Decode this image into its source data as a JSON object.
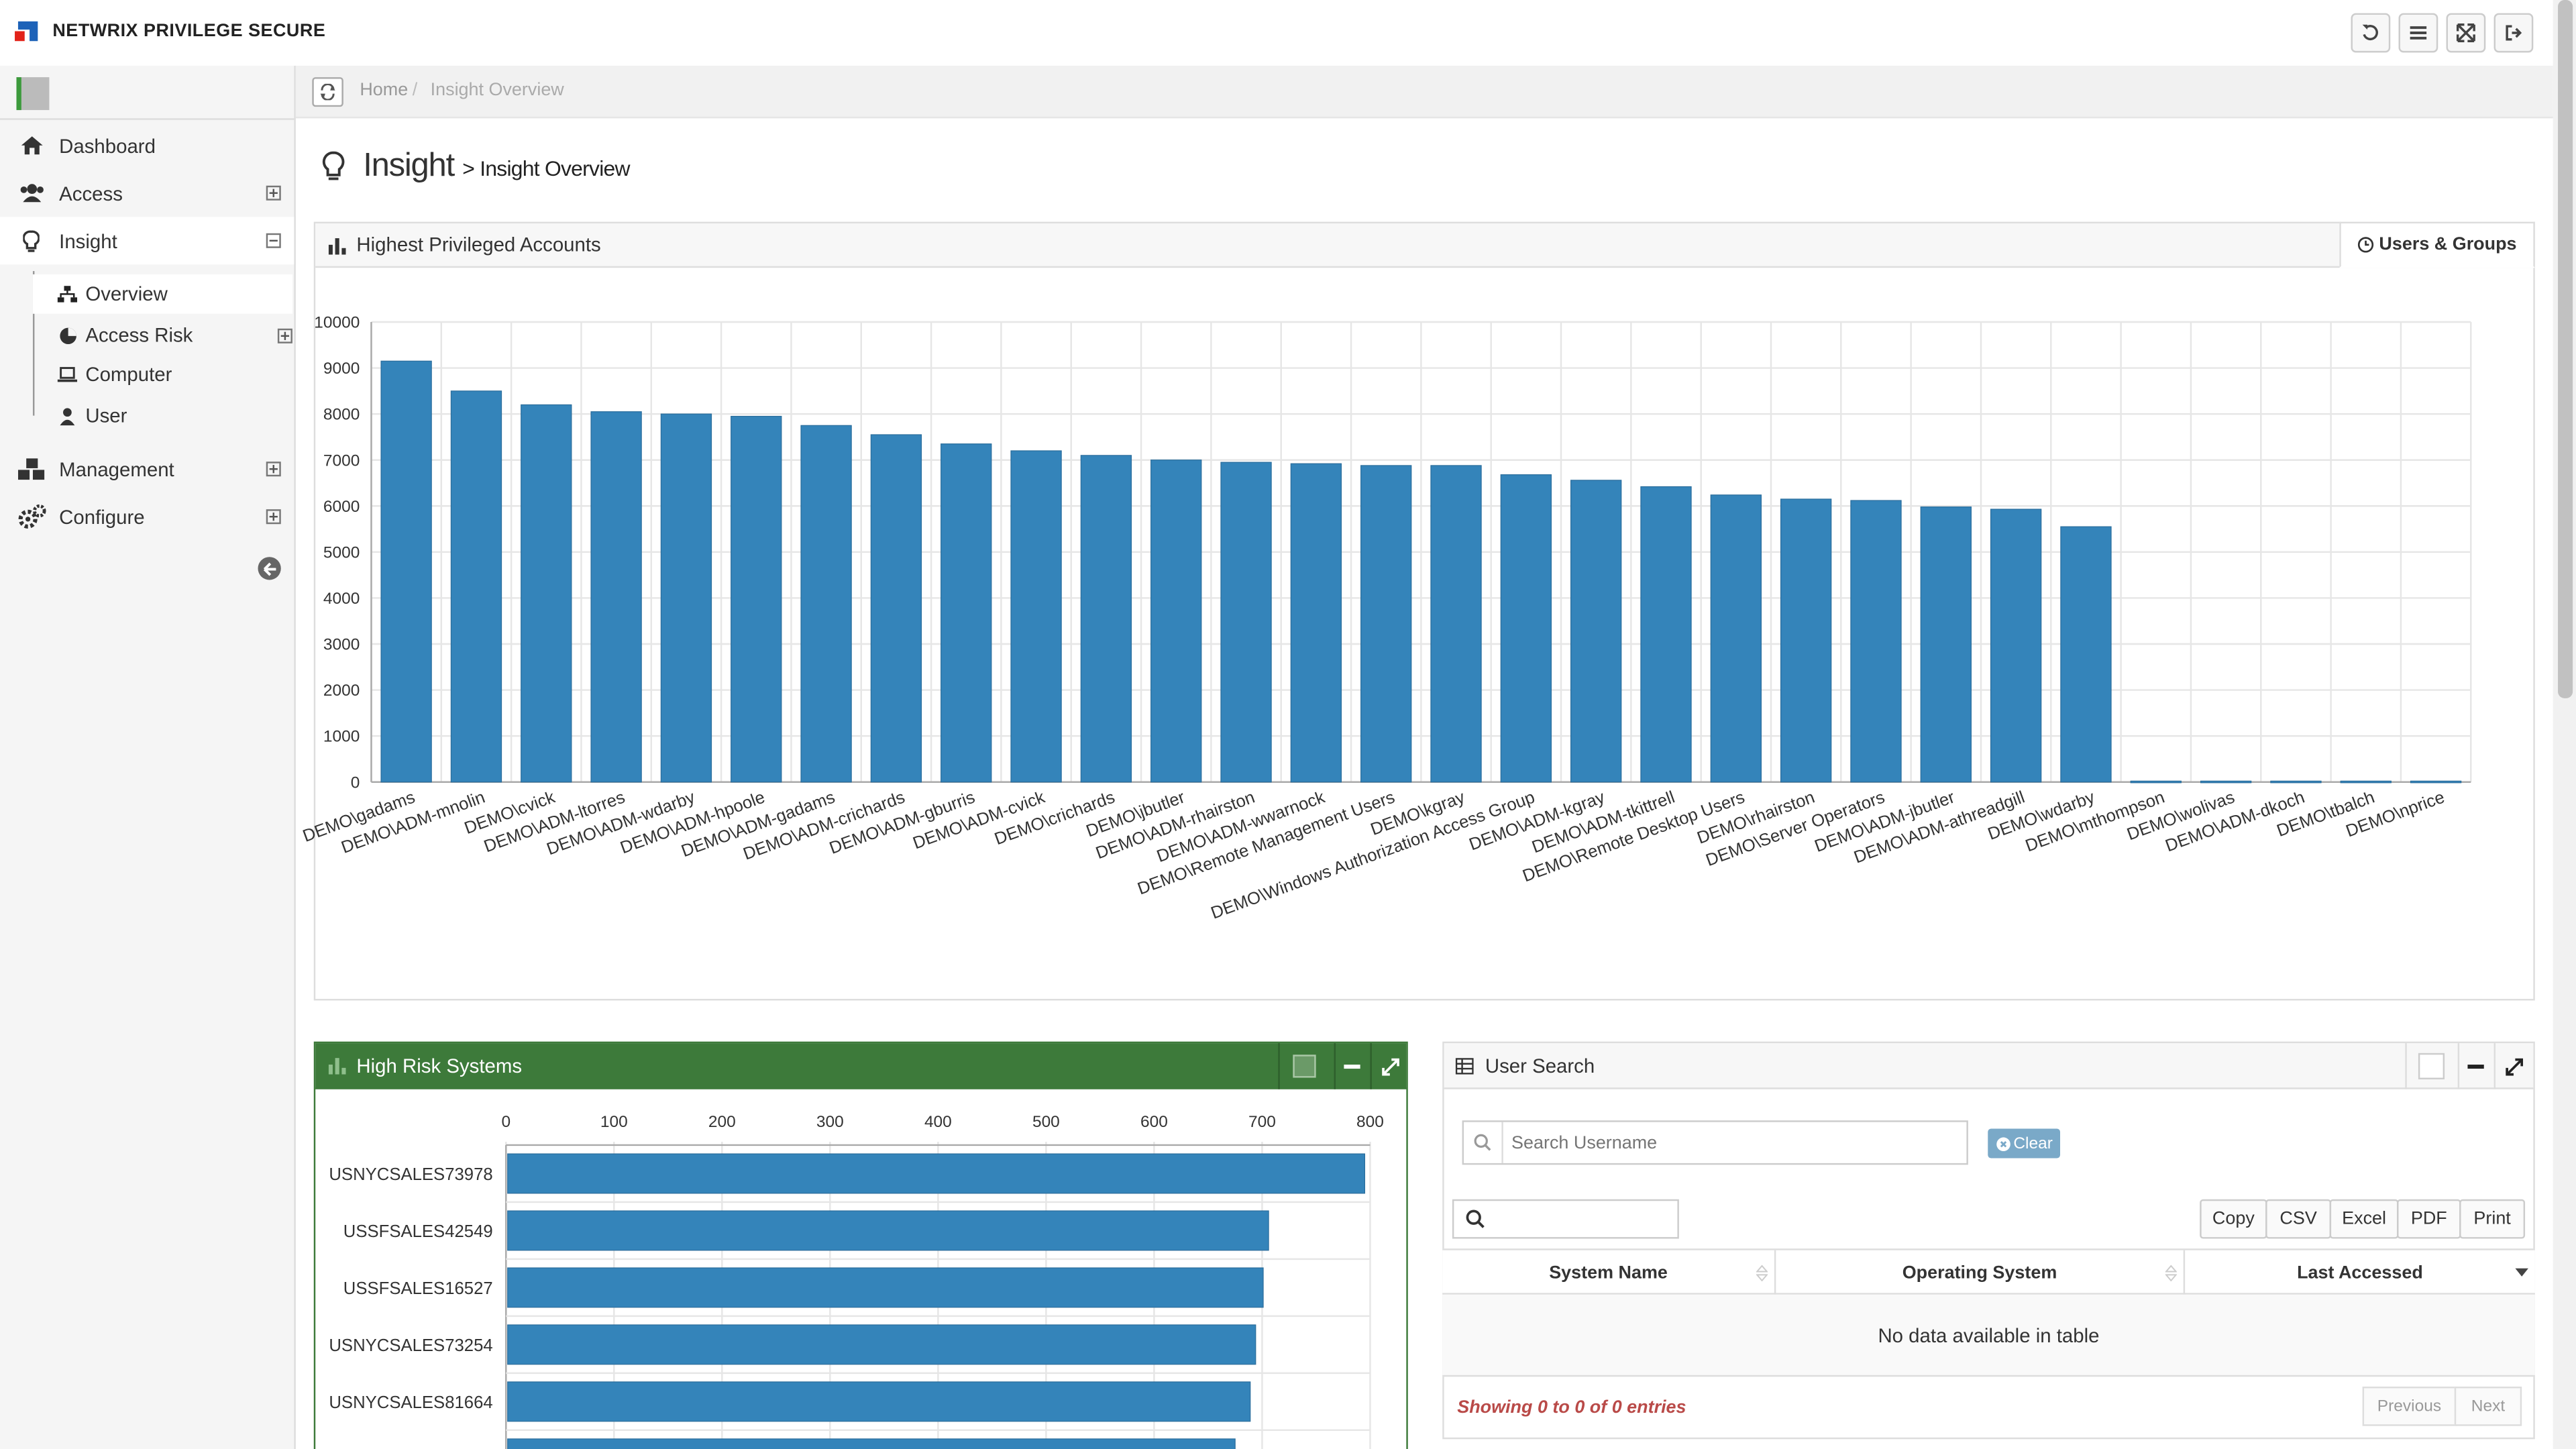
{
  "app": {
    "title": "NETWRIX PRIVILEGE SECURE"
  },
  "colors": {
    "accent": "#337ab7",
    "bar": "#3484ba",
    "panel_green": "#3d7a3a",
    "danger": "#b94a48"
  },
  "sidebar": {
    "items": [
      {
        "label": "Dashboard",
        "icon": "home-icon"
      },
      {
        "label": "Access",
        "icon": "users-icon"
      },
      {
        "label": "Insight",
        "icon": "lightbulb-icon"
      },
      {
        "label": "Management",
        "icon": "cubes-icon"
      },
      {
        "label": "Configure",
        "icon": "cogs-icon"
      }
    ],
    "insight_sub": [
      {
        "label": "Overview",
        "icon": "sitemap-icon"
      },
      {
        "label": "Access Risk",
        "icon": "pie-chart-icon"
      },
      {
        "label": "Computer",
        "icon": "laptop-icon"
      },
      {
        "label": "User",
        "icon": "user-icon"
      }
    ]
  },
  "breadcrumb": {
    "home": "Home",
    "current": "Insight Overview"
  },
  "page": {
    "title": "Insight",
    "subtitle": "> Insight Overview"
  },
  "priv_panel": {
    "title": "Highest Privileged Accounts",
    "tab": "Users & Groups"
  },
  "risk_panel": {
    "title": "High Risk Systems"
  },
  "search_panel": {
    "title": "User Search",
    "placeholder": "Search Username",
    "clear": "Clear",
    "buttons": [
      "Copy",
      "CSV",
      "Excel",
      "PDF",
      "Print"
    ],
    "columns": [
      "System Name",
      "Operating System",
      "Last Accessed"
    ],
    "empty": "No data available in table",
    "info": "Showing 0 to 0 of 0 entries",
    "prev": "Previous",
    "next": "Next"
  },
  "chart_data": [
    {
      "type": "bar",
      "title": "Highest Privileged Accounts",
      "categories": [
        "DEMO\\gadams",
        "DEMO\\ADM-mnolin",
        "DEMO\\cvick",
        "DEMO\\ADM-ltorres",
        "DEMO\\ADM-wdarby",
        "DEMO\\ADM-hpoole",
        "DEMO\\ADM-gadams",
        "DEMO\\ADM-crichards",
        "DEMO\\ADM-gburris",
        "DEMO\\ADM-cvick",
        "DEMO\\crichards",
        "DEMO\\jbutler",
        "DEMO\\ADM-rhairston",
        "DEMO\\ADM-wwarnock",
        "DEMO\\Remote Management Users",
        "DEMO\\kgray",
        "DEMO\\Windows Authorization Access Group",
        "DEMO\\ADM-kgray",
        "DEMO\\ADM-tkittrell",
        "DEMO\\Remote Desktop Users",
        "DEMO\\rhairston",
        "DEMO\\Server Operators",
        "DEMO\\ADM-jbutler",
        "DEMO\\ADM-athreadgill",
        "DEMO\\wdarby",
        "DEMO\\mthompson",
        "DEMO\\wolivas",
        "DEMO\\ADM-dkoch",
        "DEMO\\tbalch",
        "DEMO\\nprice"
      ],
      "values": [
        9150,
        8500,
        8200,
        8050,
        8000,
        7950,
        7750,
        7550,
        7350,
        7200,
        7100,
        7000,
        6950,
        6920,
        6880,
        6880,
        6680,
        6560,
        6420,
        6240,
        6150,
        6120,
        5980,
        5930,
        5550,
        20,
        20,
        20,
        20,
        20
      ],
      "ylim": [
        0,
        10000
      ],
      "yticks": [
        0,
        1000,
        2000,
        3000,
        4000,
        5000,
        6000,
        7000,
        8000,
        9000,
        10000
      ],
      "grid": true
    },
    {
      "type": "bar",
      "orientation": "horizontal",
      "title": "High Risk Systems",
      "categories": [
        "USNYCSALES73978",
        "USSFSALES42549",
        "USSFSALES16527",
        "USNYCSALES73254",
        "USNYCSALES81664",
        ""
      ],
      "values": [
        795,
        706,
        701,
        694,
        689,
        675
      ],
      "xlim": [
        0,
        800
      ],
      "xticks": [
        0,
        100,
        200,
        300,
        400,
        500,
        600,
        700,
        800
      ],
      "grid": true
    }
  ]
}
